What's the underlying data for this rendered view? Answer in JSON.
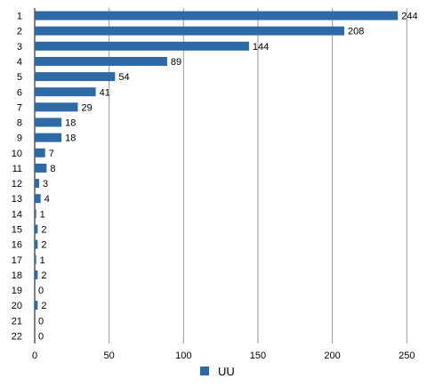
{
  "chart_data": {
    "type": "bar",
    "orientation": "horizontal",
    "categories": [
      "1",
      "2",
      "3",
      "4",
      "5",
      "6",
      "7",
      "8",
      "9",
      "10",
      "11",
      "12",
      "13",
      "14",
      "15",
      "16",
      "17",
      "18",
      "19",
      "20",
      "21",
      "22"
    ],
    "series": [
      {
        "name": "UU",
        "values": [
          244,
          208,
          144,
          89,
          54,
          41,
          29,
          18,
          18,
          7,
          8,
          3,
          4,
          1,
          2,
          2,
          1,
          2,
          0,
          2,
          0,
          0
        ]
      }
    ],
    "x_ticks": [
      "0",
      "50",
      "100",
      "150",
      "200",
      "250"
    ],
    "xlim": [
      0,
      260
    ],
    "grid": "vertical",
    "legend_position": "bottom-center",
    "data_labels": true,
    "title": "",
    "xlabel": "",
    "ylabel": "",
    "colors": {
      "bar": "#2e6aa6",
      "grid": "#9a9a9a",
      "axis": "#000000"
    }
  }
}
